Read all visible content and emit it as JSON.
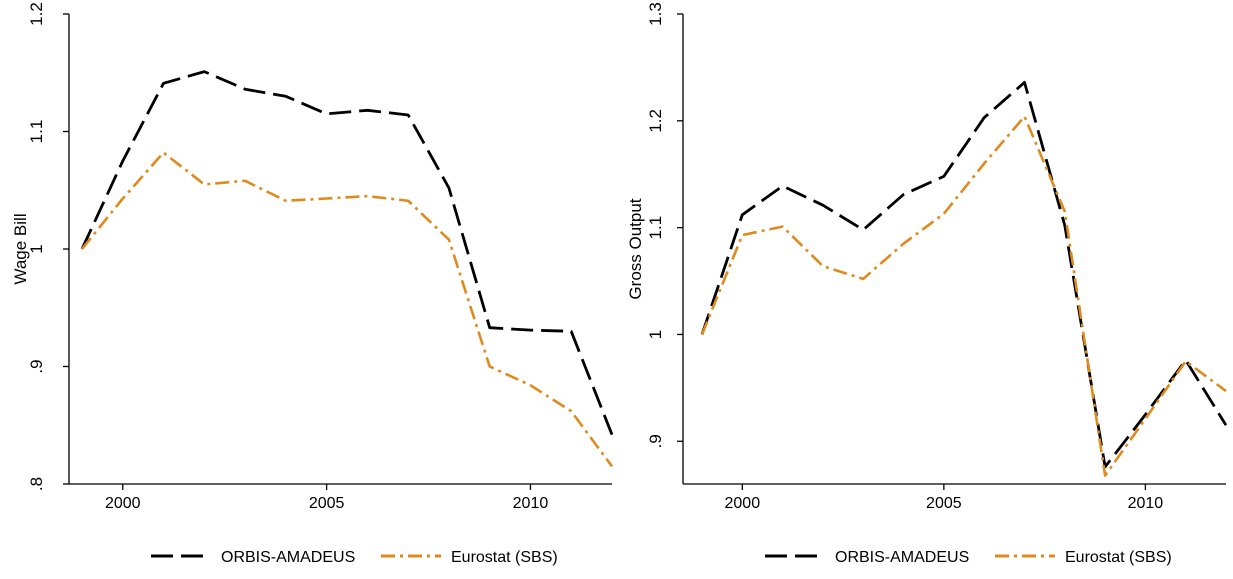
{
  "colors": {
    "orbis": "#000000",
    "eurostat": "#e08a1e",
    "axis": "#000000"
  },
  "chart_data": [
    {
      "type": "line",
      "xlabel": "",
      "ylabel": "Wage Bill",
      "x": [
        1999,
        2000,
        2001,
        2002,
        2003,
        2004,
        2005,
        2006,
        2007,
        2008,
        2009,
        2010,
        2011,
        2012
      ],
      "xticks": [
        2000,
        2005,
        2010
      ],
      "xlim": [
        1999,
        2012
      ],
      "ylim": [
        0.8,
        1.2
      ],
      "yticks": [
        0.8,
        0.9,
        1.0,
        1.1,
        1.2
      ],
      "ytick_labels": [
        ".8",
        ".9",
        "1",
        "1.1",
        "1.2"
      ],
      "series": [
        {
          "name": "ORBIS-AMADEUS",
          "style": "dashed",
          "values": [
            1.0,
            1.075,
            1.141,
            1.151,
            1.136,
            1.13,
            1.115,
            1.118,
            1.114,
            1.052,
            0.933,
            0.931,
            0.93,
            0.842
          ]
        },
        {
          "name": "Eurostat (SBS)",
          "style": "dashdot",
          "values": [
            1.0,
            1.043,
            1.082,
            1.055,
            1.058,
            1.041,
            1.043,
            1.045,
            1.041,
            1.008,
            0.9,
            0.884,
            0.862,
            0.815
          ]
        }
      ],
      "legend": [
        "ORBIS-AMADEUS",
        "Eurostat (SBS)"
      ],
      "legend_position": "bottom",
      "grid": false
    },
    {
      "type": "line",
      "xlabel": "",
      "ylabel": "Gross Output",
      "x": [
        1999,
        2000,
        2001,
        2002,
        2003,
        2004,
        2005,
        2006,
        2007,
        2008,
        2009,
        2010,
        2011,
        2012
      ],
      "xticks": [
        2000,
        2005,
        2010
      ],
      "xlim": [
        1999,
        2012
      ],
      "ylim": [
        0.86,
        1.3
      ],
      "yticks": [
        0.9,
        1.0,
        1.1,
        1.2,
        1.3
      ],
      "ytick_labels": [
        ".9",
        "1",
        "1.1",
        "1.2",
        "1.3"
      ],
      "series": [
        {
          "name": "ORBIS-AMADEUS",
          "style": "dashed",
          "values": [
            1.0,
            1.112,
            1.139,
            1.121,
            1.098,
            1.131,
            1.148,
            1.203,
            1.236,
            1.102,
            0.876,
            0.925,
            0.976,
            0.915
          ]
        },
        {
          "name": "Eurostat (SBS)",
          "style": "dashdot",
          "values": [
            1.0,
            1.093,
            1.101,
            1.064,
            1.052,
            1.085,
            1.113,
            1.16,
            1.204,
            1.115,
            0.868,
            0.921,
            0.975,
            0.947
          ]
        }
      ],
      "legend": [
        "ORBIS-AMADEUS",
        "Eurostat (SBS)"
      ],
      "legend_position": "bottom",
      "grid": false
    }
  ]
}
